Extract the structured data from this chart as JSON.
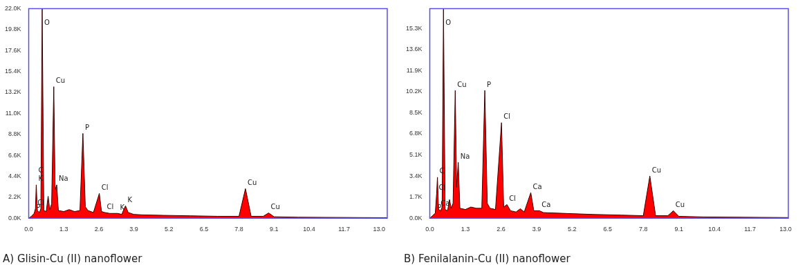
{
  "chart_data": [
    {
      "type": "area",
      "title": "A) Glisin-Cu (II) nanoflower",
      "xlim": [
        0,
        13.3
      ],
      "ylim": [
        0,
        22000
      ],
      "xticks": [
        {
          "value": 0,
          "label": "0.0"
        },
        {
          "value": 1.3,
          "label": "1.3"
        },
        {
          "value": 2.6,
          "label": "2.6"
        },
        {
          "value": 3.9,
          "label": "3.9"
        },
        {
          "value": 5.2,
          "label": "5.2"
        },
        {
          "value": 6.5,
          "label": "6.5"
        },
        {
          "value": 7.8,
          "label": "7.8"
        },
        {
          "value": 9.1,
          "label": "9.1"
        },
        {
          "value": 10.4,
          "label": "10.4"
        },
        {
          "value": 11.7,
          "label": "11.7"
        },
        {
          "value": 13,
          "label": "13.0"
        }
      ],
      "yticks": [
        {
          "value": 0,
          "label": "0.0K"
        },
        {
          "value": 2200,
          "label": "2.2K"
        },
        {
          "value": 4400,
          "label": "4.4K"
        },
        {
          "value": 6600,
          "label": "6.6K"
        },
        {
          "value": 8800,
          "label": "8.8K"
        },
        {
          "value": 11000,
          "label": "11.0K"
        },
        {
          "value": 13200,
          "label": "13.2K"
        },
        {
          "value": 15400,
          "label": "15.4K"
        },
        {
          "value": 17600,
          "label": "17.6K"
        },
        {
          "value": 19800,
          "label": "19.8K"
        },
        {
          "value": 22000,
          "label": "22.0K"
        }
      ],
      "x": [
        0,
        0.1,
        0.2,
        0.25,
        0.28,
        0.32,
        0.4,
        0.45,
        0.5,
        0.56,
        0.65,
        0.72,
        0.78,
        0.85,
        0.93,
        0.98,
        1.04,
        1.1,
        1.3,
        1.5,
        1.7,
        1.9,
        2.01,
        2.1,
        2.2,
        2.4,
        2.62,
        2.7,
        2.82,
        3.0,
        3.31,
        3.45,
        3.59,
        3.69,
        3.9,
        4.2,
        5,
        6,
        7,
        7.8,
        8.04,
        8.25,
        8.7,
        8.9,
        9.1,
        10,
        13.3
      ],
      "series": [
        {
          "color": "#ff0000",
          "values": [
            0,
            200,
            500,
            1000,
            3500,
            800,
            600,
            1000,
            22000,
            800,
            700,
            2300,
            900,
            1500,
            13800,
            3000,
            3500,
            800,
            700,
            900,
            700,
            800,
            8900,
            1200,
            800,
            600,
            2600,
            700,
            600,
            500,
            500,
            400,
            1300,
            600,
            400,
            350,
            300,
            250,
            200,
            200,
            3100,
            200,
            200,
            550,
            150,
            100,
            50
          ]
        }
      ],
      "annotations": [
        {
          "text": "O",
          "x": 0.5,
          "y": 22000
        },
        {
          "text": "Cu",
          "x": 0.93,
          "y": 13800
        },
        {
          "text": "K",
          "x": 0.28,
          "y": 3500
        },
        {
          "text": "C",
          "x": 0.28,
          "y": 3500
        },
        {
          "text": "Cl",
          "x": 0.25,
          "y": 1000
        },
        {
          "text": "P",
          "x": 0.2,
          "y": 500
        },
        {
          "text": "Na",
          "x": 1.04,
          "y": 3500
        },
        {
          "text": "P",
          "x": 2.01,
          "y": 8900
        },
        {
          "text": "Cl",
          "x": 2.62,
          "y": 2600
        },
        {
          "text": "Cl",
          "x": 2.82,
          "y": 600
        },
        {
          "text": "K",
          "x": 3.31,
          "y": 500
        },
        {
          "text": "K",
          "x": 3.59,
          "y": 1300
        },
        {
          "text": "Cu",
          "x": 8.04,
          "y": 3100
        },
        {
          "text": "Cu",
          "x": 8.9,
          "y": 550
        }
      ]
    },
    {
      "type": "area",
      "title": "B) Fenilalanin-Cu (II) nanoflower",
      "xlim": [
        0,
        13.1
      ],
      "ylim": [
        0,
        16900
      ],
      "xticks": [
        {
          "value": 0,
          "label": "0.0"
        },
        {
          "value": 1.3,
          "label": "1.3"
        },
        {
          "value": 2.6,
          "label": "2.6"
        },
        {
          "value": 3.9,
          "label": "3.9"
        },
        {
          "value": 5.2,
          "label": "5.2"
        },
        {
          "value": 6.5,
          "label": "6.5"
        },
        {
          "value": 7.8,
          "label": "7.8"
        },
        {
          "value": 9.1,
          "label": "9.1"
        },
        {
          "value": 10.4,
          "label": "10.4"
        },
        {
          "value": 11.7,
          "label": "11.7"
        },
        {
          "value": 13,
          "label": "13.0"
        }
      ],
      "yticks": [
        {
          "value": 0,
          "label": "0.0K"
        },
        {
          "value": 1700,
          "label": "1.7K"
        },
        {
          "value": 3400,
          "label": "3.4K"
        },
        {
          "value": 5100,
          "label": "5.1K"
        },
        {
          "value": 6800,
          "label": "6.8K"
        },
        {
          "value": 8500,
          "label": "8.5K"
        },
        {
          "value": 10200,
          "label": "10.2K"
        },
        {
          "value": 11900,
          "label": "11.9K"
        },
        {
          "value": 13600,
          "label": "13.6K"
        },
        {
          "value": 15300,
          "label": "15.3K"
        }
      ],
      "x": [
        0,
        0.1,
        0.2,
        0.25,
        0.28,
        0.32,
        0.4,
        0.45,
        0.5,
        0.56,
        0.65,
        0.72,
        0.78,
        0.85,
        0.93,
        0.98,
        1.04,
        1.1,
        1.3,
        1.5,
        1.7,
        1.9,
        2.01,
        2.1,
        2.2,
        2.4,
        2.62,
        2.7,
        2.82,
        2.95,
        3.15,
        3.31,
        3.45,
        3.69,
        3.8,
        4.01,
        4.15,
        5,
        6,
        7,
        7.8,
        8.04,
        8.25,
        8.7,
        8.9,
        9.1,
        10,
        13.1
      ],
      "series": [
        {
          "color": "#ff0000",
          "values": [
            0,
            200,
            400,
            2000,
            3300,
            700,
            600,
            900,
            16900,
            700,
            600,
            1500,
            800,
            1200,
            10300,
            2500,
            4500,
            800,
            700,
            900,
            800,
            800,
            10300,
            1200,
            800,
            700,
            7700,
            900,
            1100,
            600,
            500,
            760,
            500,
            2060,
            600,
            600,
            450,
            380,
            300,
            250,
            200,
            3400,
            200,
            200,
            600,
            150,
            100,
            50
          ]
        }
      ],
      "annotations": [
        {
          "text": "O",
          "x": 0.5,
          "y": 16900
        },
        {
          "text": "Cu",
          "x": 0.93,
          "y": 10300
        },
        {
          "text": "Na",
          "x": 1.04,
          "y": 4500
        },
        {
          "text": "C",
          "x": 0.28,
          "y": 3300
        },
        {
          "text": "Cl",
          "x": 0.25,
          "y": 2000
        },
        {
          "text": "Ca",
          "x": 0.32,
          "y": 700
        },
        {
          "text": "P",
          "x": 0.2,
          "y": 400
        },
        {
          "text": "P",
          "x": 2.01,
          "y": 10300
        },
        {
          "text": "Cl",
          "x": 2.62,
          "y": 7700
        },
        {
          "text": "Cl",
          "x": 2.82,
          "y": 1100
        },
        {
          "text": "Ca",
          "x": 3.69,
          "y": 2060
        },
        {
          "text": "Ca",
          "x": 4.01,
          "y": 600
        },
        {
          "text": "Cu",
          "x": 8.04,
          "y": 3400
        },
        {
          "text": "Cu",
          "x": 8.9,
          "y": 600
        }
      ]
    }
  ]
}
